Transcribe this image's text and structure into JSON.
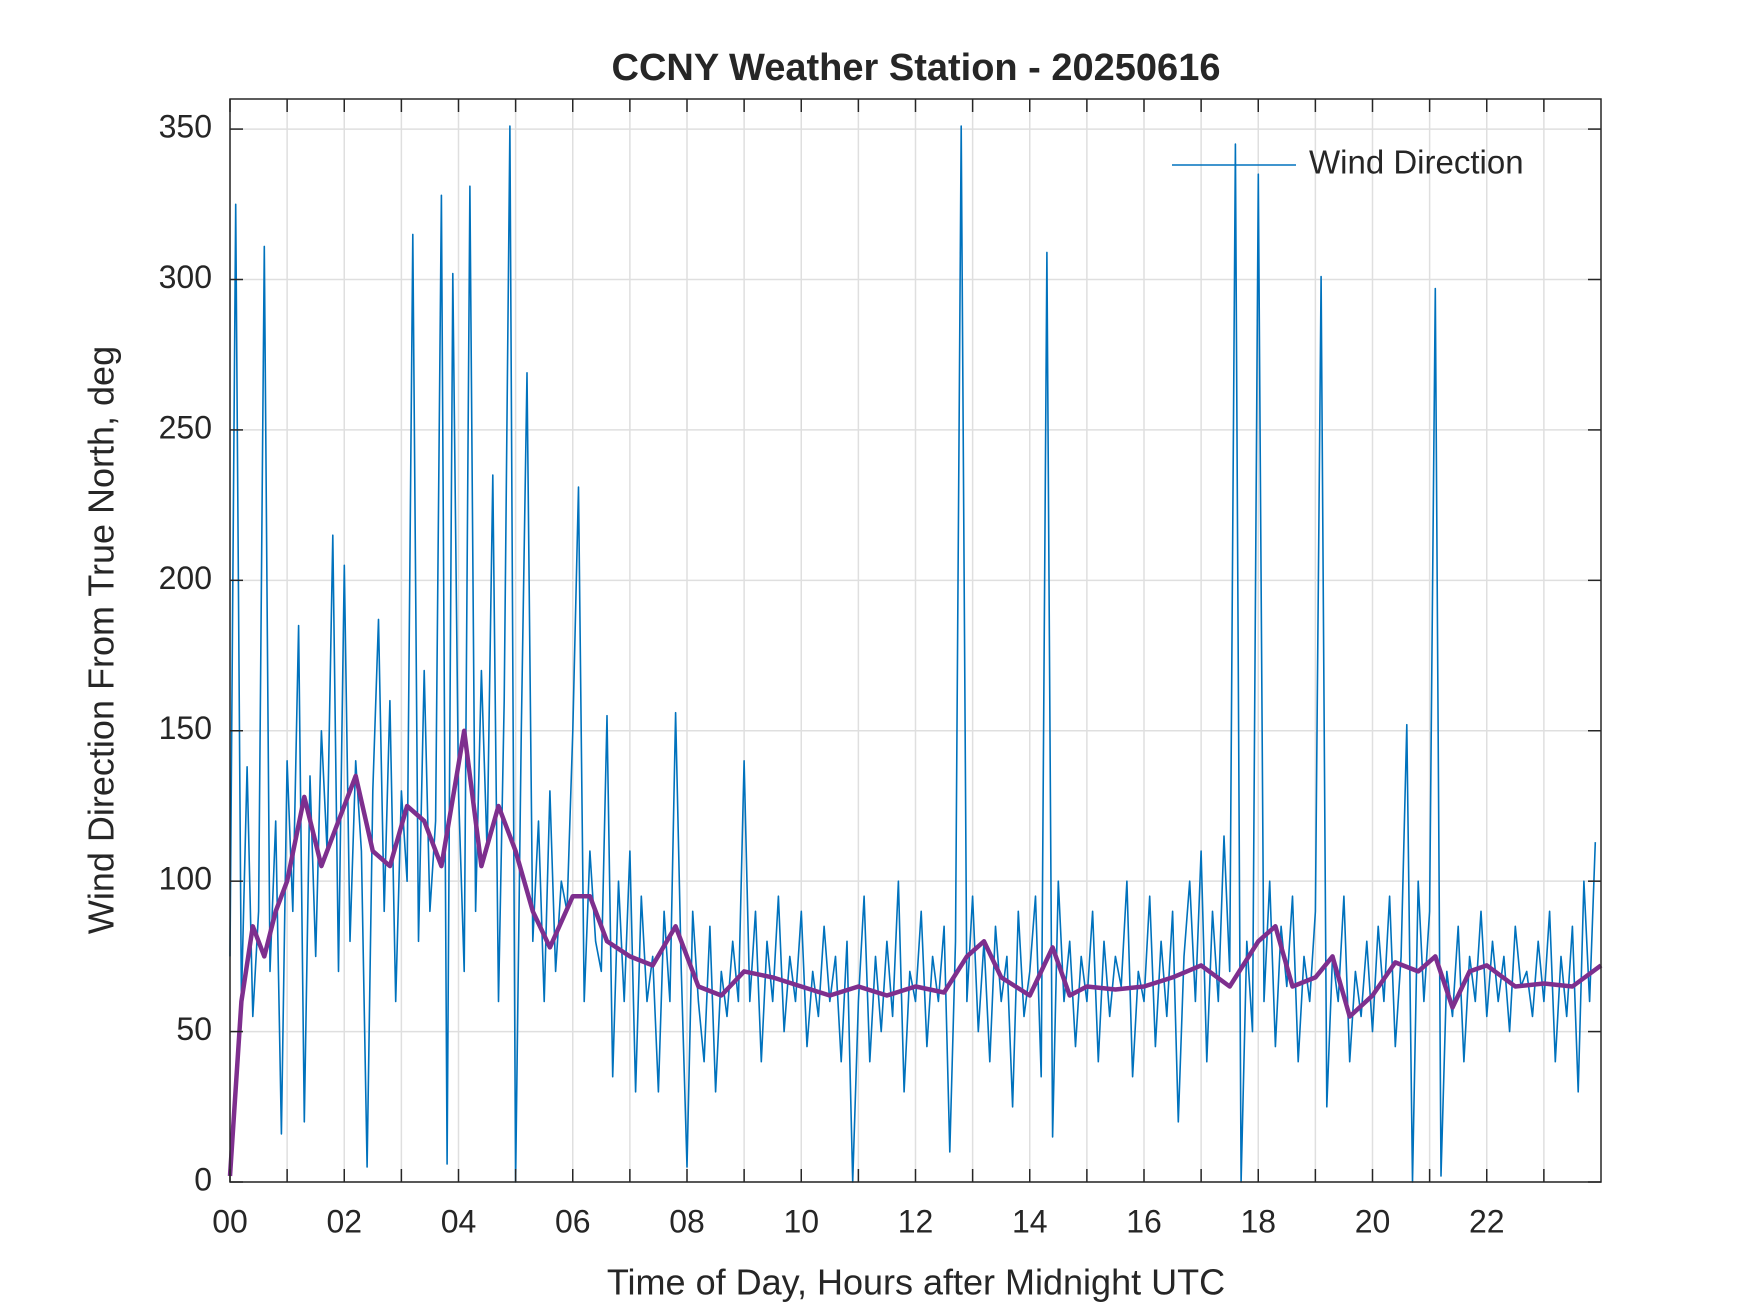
{
  "chart_data": {
    "type": "line",
    "title": "CCNY Weather Station - 20250616",
    "xlabel": "Time of Day, Hours after Midnight UTC",
    "ylabel": "Wind Direction From True North, deg",
    "xlim": [
      0,
      24
    ],
    "ylim": [
      0,
      360
    ],
    "xticks": [
      {
        "value": 0,
        "label": "00"
      },
      {
        "value": 2,
        "label": "02"
      },
      {
        "value": 4,
        "label": "04"
      },
      {
        "value": 6,
        "label": "06"
      },
      {
        "value": 8,
        "label": "08"
      },
      {
        "value": 10,
        "label": "10"
      },
      {
        "value": 12,
        "label": "12"
      },
      {
        "value": 14,
        "label": "14"
      },
      {
        "value": 16,
        "label": "16"
      },
      {
        "value": 18,
        "label": "18"
      },
      {
        "value": 20,
        "label": "20"
      },
      {
        "value": 22,
        "label": "22"
      }
    ],
    "xminorticks": [
      1,
      3,
      5,
      7,
      9,
      11,
      13,
      15,
      17,
      19,
      21,
      23
    ],
    "yticks": [
      0,
      50,
      100,
      150,
      200,
      250,
      300,
      350
    ],
    "grid": true,
    "legend": "top-right",
    "series": [
      {
        "name": "Wind Direction",
        "color": "#0072bd",
        "x": [
          0,
          0.1,
          0.2,
          0.3,
          0.4,
          0.5,
          0.6,
          0.7,
          0.8,
          0.9,
          1,
          1.1,
          1.2,
          1.3,
          1.4,
          1.5,
          1.6,
          1.7,
          1.8,
          1.9,
          2,
          2.1,
          2.2,
          2.3,
          2.4,
          2.5,
          2.6,
          2.7,
          2.8,
          2.9,
          3,
          3.1,
          3.2,
          3.3,
          3.4,
          3.5,
          3.6,
          3.7,
          3.8,
          3.9,
          4,
          4.1,
          4.2,
          4.3,
          4.4,
          4.5,
          4.6,
          4.7,
          4.8,
          4.9,
          5,
          5.1,
          5.2,
          5.3,
          5.4,
          5.5,
          5.6,
          5.7,
          5.8,
          5.9,
          6,
          6.1,
          6.2,
          6.3,
          6.4,
          6.5,
          6.6,
          6.7,
          6.8,
          6.9,
          7,
          7.1,
          7.2,
          7.3,
          7.4,
          7.5,
          7.6,
          7.7,
          7.8,
          7.9,
          8,
          8.1,
          8.2,
          8.3,
          8.4,
          8.5,
          8.6,
          8.7,
          8.8,
          8.9,
          9,
          9.1,
          9.2,
          9.3,
          9.4,
          9.5,
          9.6,
          9.7,
          9.8,
          9.9,
          10,
          10.1,
          10.2,
          10.3,
          10.4,
          10.5,
          10.6,
          10.7,
          10.8,
          10.9,
          11,
          11.1,
          11.2,
          11.3,
          11.4,
          11.5,
          11.6,
          11.7,
          11.8,
          11.9,
          12,
          12.1,
          12.2,
          12.3,
          12.4,
          12.5,
          12.6,
          12.7,
          12.8,
          12.9,
          13,
          13.1,
          13.2,
          13.3,
          13.4,
          13.5,
          13.6,
          13.7,
          13.8,
          13.9,
          14,
          14.1,
          14.2,
          14.3,
          14.4,
          14.5,
          14.6,
          14.7,
          14.8,
          14.9,
          15,
          15.1,
          15.2,
          15.3,
          15.4,
          15.5,
          15.6,
          15.7,
          15.8,
          15.9,
          16,
          16.1,
          16.2,
          16.3,
          16.4,
          16.5,
          16.6,
          16.7,
          16.8,
          16.9,
          17,
          17.1,
          17.2,
          17.3,
          17.4,
          17.5,
          17.6,
          17.7,
          17.8,
          17.9,
          18,
          18.1,
          18.2,
          18.3,
          18.4,
          18.5,
          18.6,
          18.7,
          18.8,
          18.9,
          19,
          19.1,
          19.2,
          19.3,
          19.4,
          19.5,
          19.6,
          19.7,
          19.8,
          19.9,
          20,
          20.1,
          20.2,
          20.3,
          20.4,
          20.5,
          20.6,
          20.7,
          20.8,
          20.9,
          21,
          21.1,
          21.2,
          21.3,
          21.4,
          21.5,
          21.6,
          21.7,
          21.8,
          21.9,
          22,
          22.1,
          22.2,
          22.3,
          22.4,
          22.5,
          22.6,
          22.7,
          22.8,
          22.9,
          23,
          23.1,
          23.2,
          23.3,
          23.4,
          23.5,
          23.6,
          23.7,
          23.8,
          23.9
        ],
        "values": [
          75,
          325,
          60,
          138,
          55,
          90,
          311,
          70,
          120,
          16,
          140,
          90,
          185,
          20,
          135,
          75,
          150,
          110,
          215,
          70,
          205,
          80,
          140,
          110,
          5,
          130,
          187,
          90,
          160,
          60,
          130,
          100,
          315,
          80,
          170,
          90,
          120,
          328,
          6,
          302,
          130,
          70,
          331,
          90,
          170,
          110,
          235,
          60,
          160,
          351,
          0,
          150,
          269,
          80,
          120,
          60,
          130,
          70,
          100,
          90,
          150,
          231,
          60,
          110,
          80,
          70,
          155,
          35,
          100,
          60,
          110,
          30,
          95,
          60,
          75,
          30,
          90,
          60,
          156,
          70,
          5,
          90,
          60,
          40,
          85,
          30,
          70,
          55,
          80,
          60,
          140,
          60,
          90,
          40,
          80,
          60,
          95,
          50,
          75,
          60,
          90,
          45,
          70,
          55,
          85,
          60,
          75,
          40,
          80,
          0,
          60,
          95,
          40,
          75,
          50,
          80,
          55,
          100,
          30,
          70,
          60,
          90,
          45,
          75,
          60,
          85,
          10,
          80,
          351,
          60,
          95,
          50,
          80,
          40,
          85,
          60,
          75,
          25,
          90,
          55,
          70,
          95,
          35,
          309,
          15,
          100,
          60,
          80,
          45,
          75,
          60,
          90,
          40,
          80,
          55,
          75,
          65,
          100,
          35,
          70,
          60,
          95,
          45,
          80,
          55,
          90,
          20,
          75,
          100,
          60,
          110,
          40,
          90,
          60,
          115,
          70,
          345,
          0,
          80,
          50,
          335,
          60,
          100,
          45,
          85,
          65,
          95,
          40,
          75,
          60,
          90,
          301,
          25,
          75,
          60,
          95,
          40,
          70,
          55,
          80,
          50,
          85,
          60,
          95,
          45,
          75,
          152,
          0,
          100,
          60,
          90,
          297,
          2,
          70,
          55,
          85,
          40,
          75,
          60,
          90,
          55,
          80,
          60,
          75,
          50,
          85,
          65,
          70,
          55,
          80,
          60,
          90,
          40,
          75,
          55,
          85,
          30,
          100,
          60,
          113
        ]
      },
      {
        "color": "#7e2f8e",
        "x": [
          0,
          0.2,
          0.4,
          0.6,
          0.8,
          1,
          1.3,
          1.6,
          1.9,
          2.2,
          2.5,
          2.8,
          3.1,
          3.4,
          3.7,
          4.1,
          4.4,
          4.7,
          5,
          5.3,
          5.6,
          6,
          6.3,
          6.6,
          7,
          7.4,
          7.8,
          8.2,
          8.6,
          9,
          9.5,
          10,
          10.5,
          11,
          11.5,
          12,
          12.5,
          12.9,
          13.2,
          13.5,
          14,
          14.4,
          14.7,
          15,
          15.5,
          16,
          16.5,
          17,
          17.5,
          18,
          18.3,
          18.6,
          19,
          19.3,
          19.6,
          20,
          20.4,
          20.8,
          21.1,
          21.4,
          21.7,
          22,
          22.5,
          23,
          23.5,
          24
        ],
        "values": [
          2,
          60,
          85,
          75,
          90,
          100,
          128,
          105,
          120,
          135,
          110,
          105,
          125,
          120,
          105,
          150,
          105,
          125,
          110,
          90,
          78,
          95,
          95,
          80,
          75,
          72,
          85,
          65,
          62,
          70,
          68,
          65,
          62,
          65,
          62,
          65,
          63,
          75,
          80,
          68,
          62,
          78,
          62,
          65,
          64,
          65,
          68,
          72,
          65,
          80,
          85,
          65,
          68,
          75,
          55,
          62,
          73,
          70,
          75,
          58,
          70,
          72,
          65,
          66,
          65,
          72
        ]
      }
    ]
  }
}
